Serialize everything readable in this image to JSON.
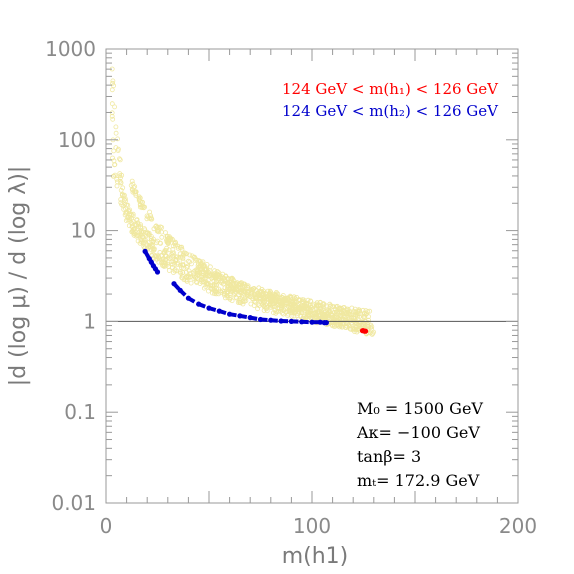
{
  "chart_data": {
    "type": "scatter",
    "xlabel": "m(h1)",
    "ylabel": "|d (log μ) / d (log λ)|",
    "xlim": [
      0,
      200
    ],
    "ylim": [
      0.01,
      1000
    ],
    "yscale": "log",
    "x_ticks": [
      0,
      100,
      200
    ],
    "x_tick_labels": [
      "0",
      "100",
      "200"
    ],
    "y_ticks": [
      0.01,
      0.1,
      1,
      10,
      100,
      1000
    ],
    "y_tick_labels": [
      "0.01",
      "0.1",
      "1",
      "10",
      "100",
      "1000"
    ],
    "reference_line": {
      "y": 1
    },
    "legend": [
      {
        "text": "124 GeV < m(h₁) < 126 GeV",
        "color": "#ff0000"
      },
      {
        "text": "124 GeV < m(h₂) < 126 GeV",
        "color": "#0000cc"
      }
    ],
    "parameters": [
      "M₀ = 1500 GeV",
      "Aκ= −100 GeV",
      "tanβ= 3",
      "mₜ= 172.9 GeV"
    ],
    "series": [
      {
        "name": "124 GeV < m(h₁) < 126 GeV",
        "color": "#ff0000",
        "x": [
          124.5,
          125.0,
          125.5,
          126.0
        ],
        "y": [
          0.79,
          0.79,
          0.78,
          0.78
        ]
      },
      {
        "name": "124 GeV < m(h₂) < 126 GeV",
        "color": "#0000cc",
        "x": [
          19,
          21,
          22,
          23,
          24,
          25,
          33,
          36,
          40,
          45,
          50,
          55,
          60,
          65,
          70,
          75,
          80,
          85,
          90,
          95,
          100,
          104,
          106,
          107
        ],
        "y": [
          5.9,
          4.9,
          4.5,
          4.1,
          3.8,
          3.5,
          2.6,
          2.2,
          1.8,
          1.55,
          1.4,
          1.3,
          1.2,
          1.15,
          1.1,
          1.05,
          1.03,
          1.01,
          1.0,
          0.99,
          0.98,
          0.98,
          0.97,
          0.97
        ]
      }
    ],
    "background_band": {
      "color": "#f0e8a0"
    }
  }
}
